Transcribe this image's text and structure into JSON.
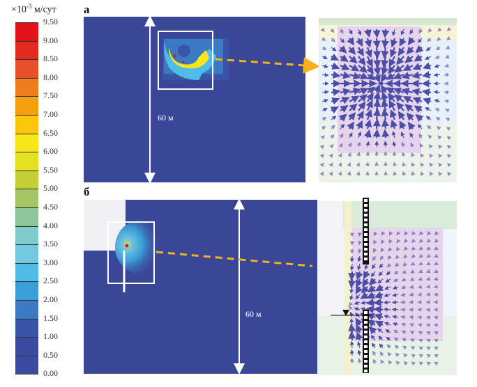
{
  "legend": {
    "unit_prefix": "×10",
    "unit_exponent": "-3",
    "unit": "м/сут",
    "ticks": [
      "9.50",
      "9.00",
      "8.50",
      "8.00",
      "7.50",
      "7.00",
      "6.50",
      "6.00",
      "5.50",
      "5.00",
      "4.50",
      "4.00",
      "3.50",
      "3.00",
      "2.50",
      "2.00",
      "1.50",
      "1.00",
      "0.50",
      "0.00"
    ],
    "colors": [
      "#e3121a",
      "#e32a1f",
      "#e5502a",
      "#ee7d1d",
      "#f5a10f",
      "#fbc70c",
      "#f8e51a",
      "#e6e022",
      "#c3cf34",
      "#a3c563",
      "#8fc59a",
      "#7ecbcc",
      "#73c7de",
      "#4fbde8",
      "#3b9ed8",
      "#3b79c2",
      "#3a55a5",
      "#3a4b9f",
      "#3a4a9c"
    ]
  },
  "panels": {
    "a": {
      "label": "а",
      "dimension": "60 м"
    },
    "b": {
      "label": "б",
      "dimension": "60 м"
    }
  },
  "colors": {
    "background_field": "#3a4698",
    "arrow": "#f5b21c",
    "vector": "#3b3f9f",
    "zone_pink": "#e5d4ec"
  }
}
